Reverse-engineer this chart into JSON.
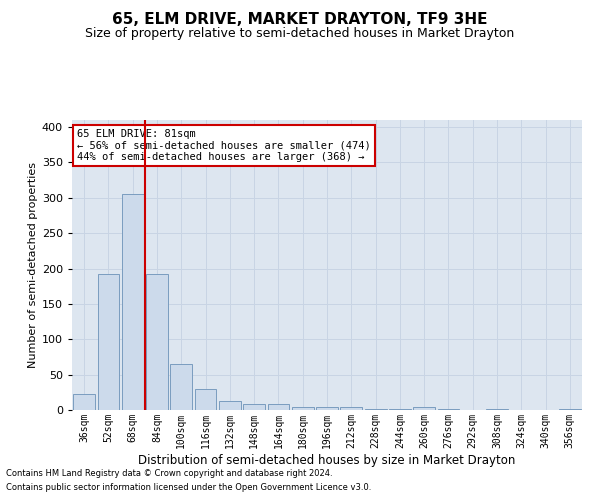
{
  "title": "65, ELM DRIVE, MARKET DRAYTON, TF9 3HE",
  "subtitle": "Size of property relative to semi-detached houses in Market Drayton",
  "xlabel": "Distribution of semi-detached houses by size in Market Drayton",
  "ylabel": "Number of semi-detached properties",
  "footer_line1": "Contains HM Land Registry data © Crown copyright and database right 2024.",
  "footer_line2": "Contains public sector information licensed under the Open Government Licence v3.0.",
  "categories": [
    "36sqm",
    "52sqm",
    "68sqm",
    "84sqm",
    "100sqm",
    "116sqm",
    "132sqm",
    "148sqm",
    "164sqm",
    "180sqm",
    "196sqm",
    "212sqm",
    "228sqm",
    "244sqm",
    "260sqm",
    "276sqm",
    "292sqm",
    "308sqm",
    "324sqm",
    "340sqm",
    "356sqm"
  ],
  "values": [
    22,
    192,
    305,
    192,
    65,
    30,
    13,
    9,
    9,
    4,
    4,
    4,
    2,
    2,
    4,
    1,
    0,
    1,
    0,
    0,
    2
  ],
  "bar_color": "#ccdaeb",
  "bar_edge_color": "#7a9cbf",
  "vline_x": 2.5,
  "annotation_title": "65 ELM DRIVE: 81sqm",
  "annotation_line1": "← 56% of semi-detached houses are smaller (474)",
  "annotation_line2": "44% of semi-detached houses are larger (368) →",
  "vline_color": "#cc0000",
  "annotation_box_color": "#ffffff",
  "annotation_box_edge": "#cc0000",
  "ylim": [
    0,
    410
  ],
  "yticks": [
    0,
    50,
    100,
    150,
    200,
    250,
    300,
    350,
    400
  ],
  "grid_color": "#c8d4e4",
  "bg_color": "#dde6f0",
  "title_fontsize": 11,
  "subtitle_fontsize": 9,
  "ylabel_fontsize": 8,
  "xlabel_fontsize": 8.5,
  "tick_fontsize": 7,
  "ytick_fontsize": 8,
  "annotation_fontsize": 7.5
}
